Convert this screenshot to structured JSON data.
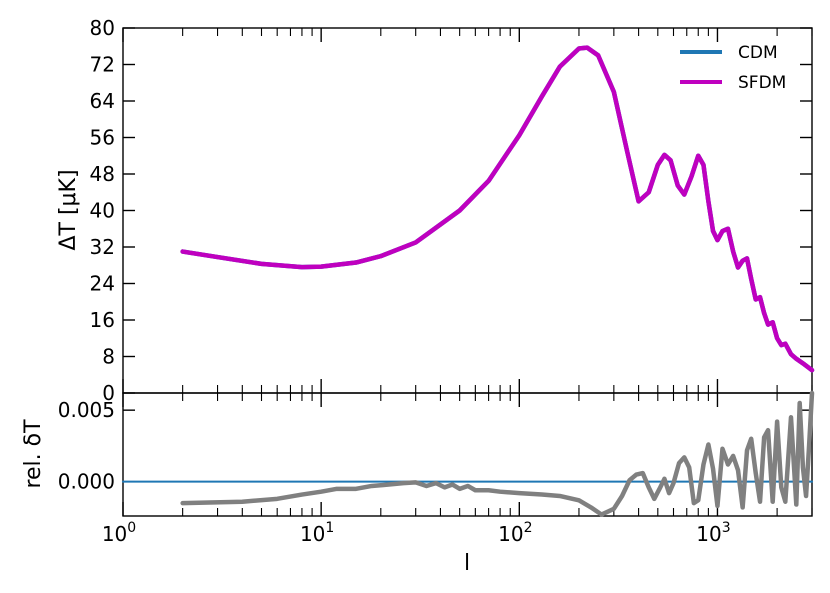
{
  "chart_data": [
    {
      "type": "line",
      "panel": "main",
      "title": "",
      "xlabel": "",
      "ylabel": "ΔT [μK]",
      "xscale": "log",
      "xlim": [
        1,
        3000
      ],
      "ylim": [
        0,
        80
      ],
      "yticks": [
        "0",
        "8",
        "16",
        "24",
        "32",
        "40",
        "48",
        "56",
        "64",
        "72",
        "80"
      ],
      "legend": {
        "placement": "top-right",
        "entries": [
          "CDM",
          "SFDM"
        ]
      },
      "grid": false,
      "series": [
        {
          "name": "CDM",
          "color": "#1f77b4",
          "x": [
            2,
            3,
            5,
            8,
            10,
            15,
            20,
            30,
            50,
            70,
            100,
            130,
            160,
            200,
            220,
            250,
            300,
            350,
            400,
            450,
            500,
            540,
            580,
            630,
            680,
            740,
            800,
            850,
            900,
            950,
            1000,
            1060,
            1130,
            1200,
            1270,
            1340,
            1410,
            1480,
            1560,
            1640,
            1720,
            1800,
            1900,
            2000,
            2100,
            2200,
            2350,
            2500,
            2700,
            3000
          ],
          "y": [
            31,
            29.8,
            28.3,
            27.6,
            27.7,
            28.6,
            30.0,
            33.0,
            40.0,
            46.5,
            56.5,
            65.0,
            71.5,
            75.5,
            75.7,
            74.0,
            66.0,
            53.0,
            42.0,
            44.0,
            50.0,
            52.2,
            51.0,
            45.5,
            43.5,
            47.5,
            52.0,
            50.0,
            42.0,
            35.5,
            33.5,
            35.5,
            36.0,
            31.0,
            27.5,
            29.0,
            29.5,
            25.0,
            20.5,
            21.0,
            17.5,
            15.0,
            15.5,
            12.0,
            10.5,
            10.8,
            8.5,
            7.5,
            6.5,
            5.0
          ]
        },
        {
          "name": "SFDM",
          "color": "#bf00bf",
          "x": [
            2,
            3,
            5,
            8,
            10,
            15,
            20,
            30,
            50,
            70,
            100,
            130,
            160,
            200,
            220,
            250,
            300,
            350,
            400,
            450,
            500,
            540,
            580,
            630,
            680,
            740,
            800,
            850,
            900,
            950,
            1000,
            1060,
            1130,
            1200,
            1270,
            1340,
            1410,
            1480,
            1560,
            1640,
            1720,
            1800,
            1900,
            2000,
            2100,
            2200,
            2350,
            2500,
            2700,
            3000
          ],
          "y": [
            31,
            29.8,
            28.3,
            27.6,
            27.7,
            28.6,
            30.0,
            33.0,
            40.0,
            46.5,
            56.5,
            65.0,
            71.5,
            75.5,
            75.7,
            74.0,
            66.0,
            53.0,
            42.0,
            44.0,
            50.0,
            52.2,
            51.0,
            45.5,
            43.5,
            47.5,
            52.0,
            50.0,
            42.0,
            35.5,
            33.5,
            35.5,
            36.0,
            31.0,
            27.5,
            29.0,
            29.5,
            25.0,
            20.5,
            21.0,
            17.5,
            15.0,
            15.5,
            12.0,
            10.5,
            10.8,
            8.5,
            7.5,
            6.5,
            5.0
          ]
        }
      ]
    },
    {
      "type": "line",
      "panel": "residual",
      "title": "",
      "xlabel": "l",
      "ylabel": "rel. δT",
      "xscale": "log",
      "xlim": [
        1,
        3000
      ],
      "ylim": [
        -0.0024,
        0.0062
      ],
      "yticks": [
        "0.000",
        "0.005"
      ],
      "xticks": [
        "10^0",
        "10^1",
        "10^2",
        "10^3"
      ],
      "grid": false,
      "series": [
        {
          "name": "CDM",
          "color": "#1f77b4",
          "x": [
            1,
            3000
          ],
          "y": [
            0,
            0
          ]
        },
        {
          "name": "SFDM",
          "color": "#808080",
          "x": [
            2,
            4,
            6,
            8,
            10,
            12,
            15,
            18,
            22,
            26,
            30,
            34,
            38,
            42,
            46,
            50,
            55,
            60,
            70,
            80,
            100,
            130,
            160,
            200,
            230,
            260,
            300,
            330,
            360,
            390,
            420,
            450,
            480,
            510,
            540,
            570,
            600,
            640,
            680,
            720,
            760,
            800,
            850,
            900,
            950,
            1000,
            1060,
            1130,
            1200,
            1270,
            1340,
            1410,
            1480,
            1560,
            1640,
            1720,
            1800,
            1900,
            2000,
            2100,
            2200,
            2350,
            2500,
            2600,
            2700,
            2800,
            2900,
            3000
          ],
          "y": [
            -0.0015,
            -0.0014,
            -0.0012,
            -0.0009,
            -0.0007,
            -0.0005,
            -0.0005,
            -0.0003,
            -0.0002,
            -0.0001,
            -5e-05,
            -0.0003,
            -0.0001,
            -0.0004,
            -0.0002,
            -0.0005,
            -0.0003,
            -0.0006,
            -0.0006,
            -0.0007,
            -0.0008,
            -0.0009,
            -0.001,
            -0.0013,
            -0.0018,
            -0.0023,
            -0.0019,
            -0.001,
            0.0001,
            0.0005,
            0.0006,
            -0.0004,
            -0.0012,
            -0.0005,
            0.0002,
            -0.0008,
            -0.0001,
            0.0013,
            0.0017,
            0.001,
            -0.0015,
            -0.0013,
            0.0012,
            0.0026,
            0.0009,
            -0.0017,
            0.0023,
            0.0012,
            0.0018,
            0.0008,
            -0.0018,
            0.0022,
            0.003,
            0.0006,
            -0.0014,
            0.0031,
            0.0036,
            -0.0014,
            0.0042,
            -0.0004,
            -0.0014,
            0.0045,
            -0.0016,
            0.0055,
            0.001,
            -0.001,
            0.0025,
            0.0062
          ]
        }
      ]
    }
  ]
}
